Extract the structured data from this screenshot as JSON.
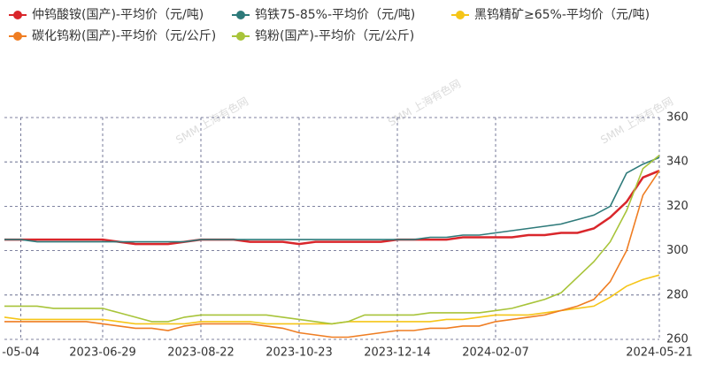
{
  "chart_data": {
    "type": "line",
    "watermark": "SMM 上海有色网",
    "categories": [
      null,
      "-05-04",
      null,
      null,
      null,
      null,
      "2023-06-29",
      null,
      null,
      null,
      null,
      null,
      "2023-08-22",
      null,
      null,
      null,
      null,
      null,
      "2023-10-23",
      null,
      null,
      null,
      null,
      null,
      "2023-12-14",
      null,
      null,
      null,
      null,
      null,
      "2024-02-07",
      null,
      null,
      null,
      null,
      null,
      null,
      null,
      null,
      null,
      "2024-05-21"
    ],
    "series": [
      {
        "name": "仲钨酸铵(国产)-平均价（元/吨)",
        "color": "#d9262b",
        "values": [
          305,
          305,
          305,
          305,
          305,
          305,
          305,
          304,
          303,
          303,
          303,
          304,
          305,
          305,
          305,
          304,
          304,
          304,
          303,
          304,
          304,
          304,
          304,
          304,
          305,
          305,
          305,
          305,
          306,
          306,
          306,
          306,
          307,
          307,
          308,
          308,
          310,
          315,
          322,
          333,
          336
        ]
      },
      {
        "name": "钨铁75-85%-平均价（元/吨)",
        "color": "#2e7a7a",
        "values": [
          305,
          305,
          304,
          304,
          304,
          304,
          304,
          304,
          304,
          304,
          304,
          304,
          305,
          305,
          305,
          305,
          305,
          305,
          305,
          305,
          305,
          305,
          305,
          305,
          305,
          305,
          306,
          306,
          307,
          307,
          308,
          309,
          310,
          311,
          312,
          314,
          316,
          320,
          335,
          339,
          342
        ]
      },
      {
        "name": "黑钨精矿≥65%-平均价（元/吨)",
        "color": "#f5c518",
        "values": [
          270,
          269,
          269,
          269,
          269,
          269,
          269,
          268,
          267,
          267,
          267,
          267,
          268,
          268,
          268,
          268,
          267,
          267,
          267,
          267,
          267,
          268,
          268,
          268,
          268,
          268,
          268,
          269,
          269,
          270,
          271,
          271,
          271,
          272,
          273,
          274,
          275,
          279,
          284,
          287,
          289
        ]
      },
      {
        "name": "碳化钨粉(国产)-平均价（元/公斤)",
        "color": "#ef7d22",
        "values": [
          268,
          268,
          268,
          268,
          268,
          268,
          267,
          266,
          265,
          265,
          264,
          266,
          267,
          267,
          267,
          267,
          266,
          265,
          263,
          262,
          261,
          261,
          262,
          263,
          264,
          264,
          265,
          265,
          266,
          266,
          268,
          269,
          270,
          271,
          273,
          275,
          278,
          286,
          300,
          325,
          336
        ]
      },
      {
        "name": "钨粉(国产)-平均价（元/公斤)",
        "color": "#a8c43a",
        "values": [
          275,
          275,
          275,
          274,
          274,
          274,
          274,
          272,
          270,
          268,
          268,
          270,
          271,
          271,
          271,
          271,
          271,
          270,
          269,
          268,
          267,
          268,
          271,
          271,
          271,
          271,
          272,
          272,
          272,
          272,
          273,
          274,
          276,
          278,
          281,
          288,
          295,
          304,
          318,
          337,
          343
        ]
      }
    ],
    "ylim": [
      260,
      360
    ],
    "yticks": [
      260,
      280,
      300,
      320,
      340,
      360
    ],
    "grid": true
  }
}
